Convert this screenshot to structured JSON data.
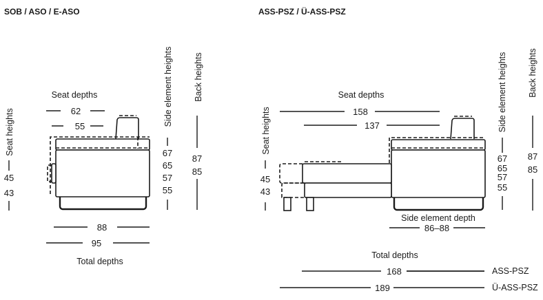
{
  "left": {
    "title": "SOB / ASO / E-ASO",
    "seat_depths_label": "Seat depths",
    "seat_depths": [
      "62",
      "55"
    ],
    "seat_heights_label": "Seat heights",
    "seat_heights": [
      "45",
      "43"
    ],
    "side_element_heights_label": "Side element heights",
    "side_element_heights": [
      "67",
      "65",
      "57",
      "55"
    ],
    "back_heights_label": "Back heights",
    "back_heights": [
      "87",
      "85"
    ],
    "total_depths": [
      "88",
      "95"
    ],
    "total_depths_label": "Total depths"
  },
  "right": {
    "title": "ASS-PSZ / Ü-ASS-PSZ",
    "seat_depths_label": "Seat depths",
    "seat_depths": [
      "158",
      "137"
    ],
    "seat_heights_label": "Seat heights",
    "seat_heights": [
      "45",
      "43"
    ],
    "side_element_heights_label": "Side element heights",
    "side_element_heights": [
      "67",
      "65",
      "57",
      "55"
    ],
    "back_heights_label": "Back heights",
    "back_heights": [
      "87",
      "85"
    ],
    "side_element_depth_label": "Side element depth",
    "side_element_depth": "86–88",
    "total_depths_label": "Total depths",
    "total_depths": [
      {
        "value": "168",
        "model": "ASS-PSZ"
      },
      {
        "value": "189",
        "model": "Ü-ASS-PSZ"
      }
    ]
  }
}
